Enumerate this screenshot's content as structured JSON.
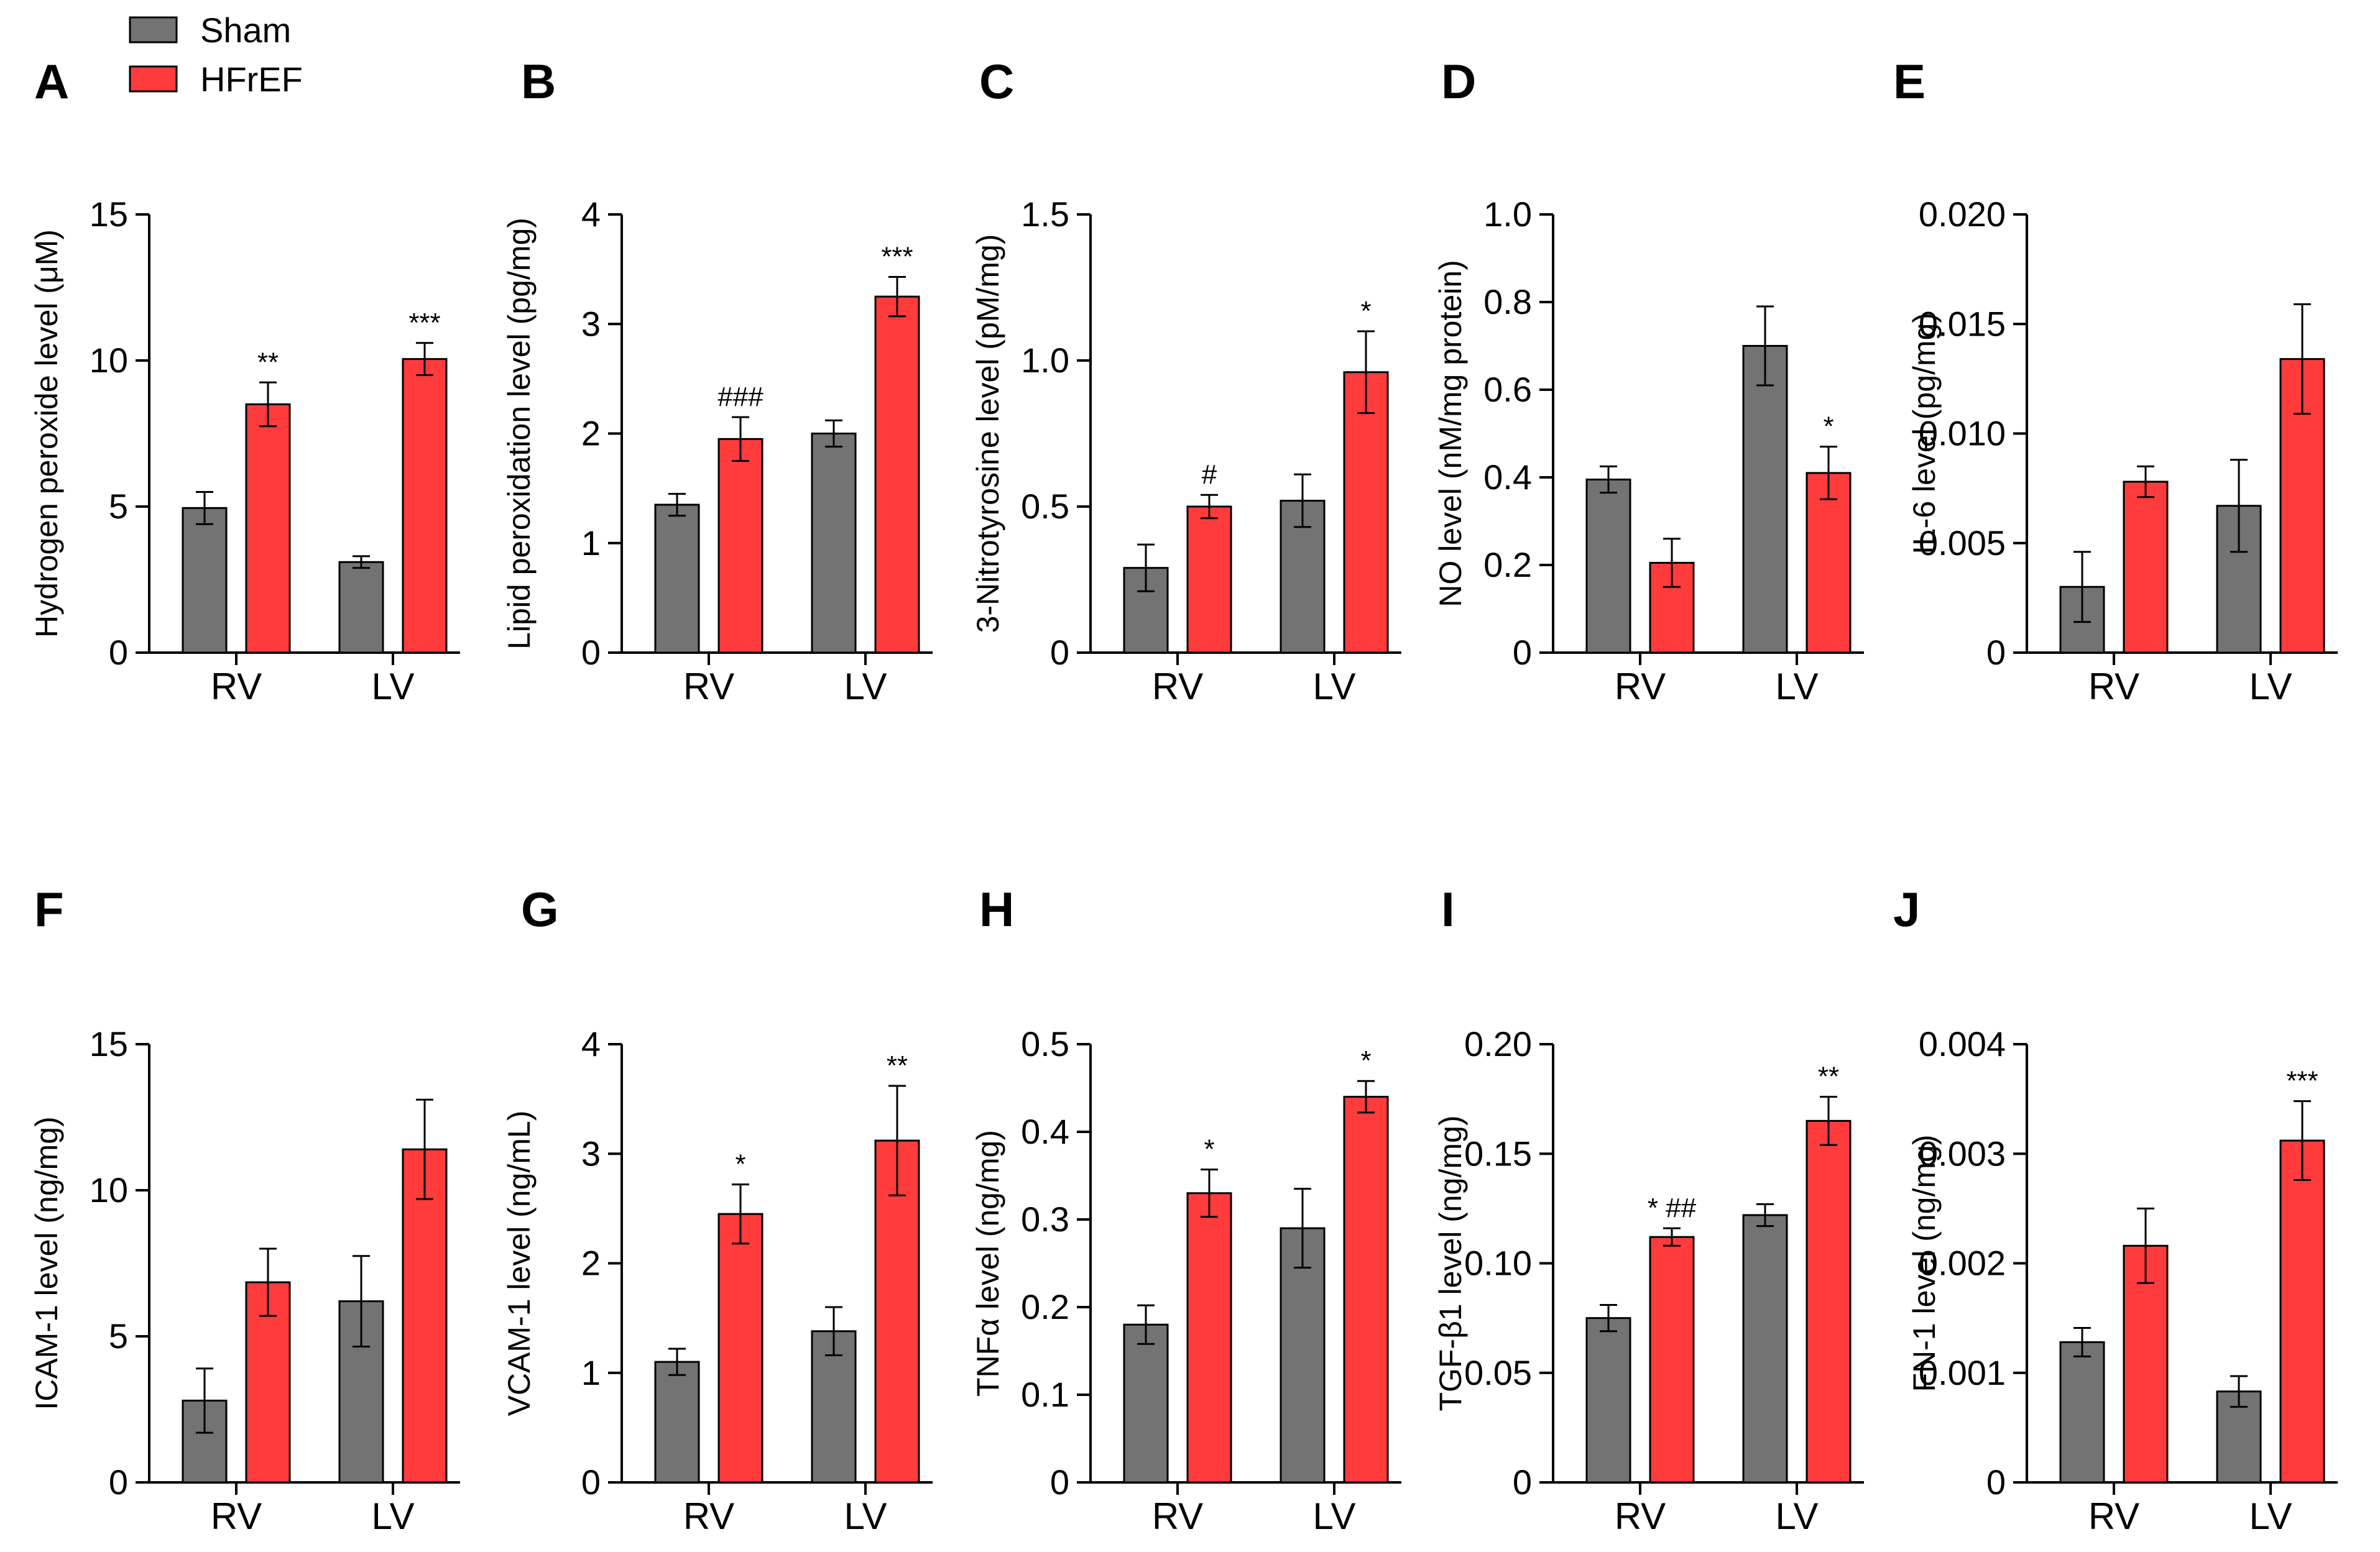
{
  "legend": {
    "items": [
      {
        "label": "Sham",
        "color": "#737373"
      },
      {
        "label": "HFrEF",
        "color": "#FF3B3B"
      }
    ]
  },
  "chart_data": [
    {
      "panel": "A",
      "type": "bar",
      "ylabel": "Hydrogen peroxide level (μM)",
      "categories": [
        "RV",
        "LV"
      ],
      "ylim": [
        0,
        15
      ],
      "yticks": [
        "0",
        "5",
        "10",
        "15"
      ],
      "series": [
        {
          "name": "Sham",
          "values": [
            4.95,
            3.1
          ],
          "errors": [
            0.55,
            0.2
          ]
        },
        {
          "name": "HFrEF",
          "values": [
            8.5,
            10.05
          ],
          "errors": [
            0.75,
            0.55
          ]
        }
      ],
      "annotations": [
        "**",
        "***"
      ]
    },
    {
      "panel": "B",
      "type": "bar",
      "ylabel": "Lipid peroxidation level (pg/mg)",
      "categories": [
        "RV",
        "LV"
      ],
      "ylim": [
        0,
        4
      ],
      "yticks": [
        "0",
        "1",
        "2",
        "3",
        "4"
      ],
      "series": [
        {
          "name": "Sham",
          "values": [
            1.35,
            2.0
          ],
          "errors": [
            0.1,
            0.12
          ]
        },
        {
          "name": "HFrEF",
          "values": [
            1.95,
            3.25
          ],
          "errors": [
            0.2,
            0.18
          ]
        }
      ],
      "annotations": [
        "###",
        "***"
      ]
    },
    {
      "panel": "C",
      "type": "bar",
      "ylabel": "3-Nitrotyrosine level (pM/mg)",
      "categories": [
        "RV",
        "LV"
      ],
      "ylim": [
        0,
        1.5
      ],
      "yticks": [
        "0",
        "0.5",
        "1.0",
        "1.5"
      ],
      "series": [
        {
          "name": "Sham",
          "values": [
            0.29,
            0.52
          ],
          "errors": [
            0.08,
            0.09
          ]
        },
        {
          "name": "HFrEF",
          "values": [
            0.5,
            0.96
          ],
          "errors": [
            0.04,
            0.14
          ]
        }
      ],
      "annotations": [
        "#",
        "*"
      ]
    },
    {
      "panel": "D",
      "type": "bar",
      "ylabel": "NO level (nM/mg protein)",
      "categories": [
        "RV",
        "LV"
      ],
      "ylim": [
        0,
        1.0
      ],
      "yticks": [
        "0",
        "0.2",
        "0.4",
        "0.6",
        "0.8",
        "1.0"
      ],
      "series": [
        {
          "name": "Sham",
          "values": [
            0.395,
            0.7
          ],
          "errors": [
            0.03,
            0.09
          ]
        },
        {
          "name": "HFrEF",
          "values": [
            0.205,
            0.41
          ],
          "errors": [
            0.055,
            0.06
          ]
        }
      ],
      "annotations": [
        "",
        "*"
      ]
    },
    {
      "panel": "E",
      "type": "bar",
      "ylabel": "IL-6 level (pg/mg)",
      "categories": [
        "RV",
        "LV"
      ],
      "ylim": [
        0,
        0.02
      ],
      "yticks": [
        "0",
        "0.005",
        "0.010",
        "0.015",
        "0.020"
      ],
      "series": [
        {
          "name": "Sham",
          "values": [
            0.003,
            0.0067
          ],
          "errors": [
            0.0016,
            0.0021
          ]
        },
        {
          "name": "HFrEF",
          "values": [
            0.0078,
            0.0134
          ],
          "errors": [
            0.0007,
            0.0025
          ]
        }
      ],
      "annotations": [
        "",
        ""
      ]
    },
    {
      "panel": "F",
      "type": "bar",
      "ylabel": "ICAM-1 level (ng/mg)",
      "categories": [
        "RV",
        "LV"
      ],
      "ylim": [
        0,
        15
      ],
      "yticks": [
        "0",
        "5",
        "10",
        "15"
      ],
      "series": [
        {
          "name": "Sham",
          "values": [
            2.8,
            6.2
          ],
          "errors": [
            1.1,
            1.55
          ]
        },
        {
          "name": "HFrEF",
          "values": [
            6.85,
            11.4
          ],
          "errors": [
            1.15,
            1.7
          ]
        }
      ],
      "annotations": [
        "",
        ""
      ]
    },
    {
      "panel": "G",
      "type": "bar",
      "ylabel": "VCAM-1 level (ng/mL)",
      "categories": [
        "RV",
        "LV"
      ],
      "ylim": [
        0,
        4
      ],
      "yticks": [
        "0",
        "1",
        "2",
        "3",
        "4"
      ],
      "series": [
        {
          "name": "Sham",
          "values": [
            1.1,
            1.38
          ],
          "errors": [
            0.12,
            0.22
          ]
        },
        {
          "name": "HFrEF",
          "values": [
            2.45,
            3.12
          ],
          "errors": [
            0.27,
            0.5
          ]
        }
      ],
      "annotations": [
        "*",
        "**"
      ]
    },
    {
      "panel": "H",
      "type": "bar",
      "ylabel": "TNFα level (ng/mg)",
      "categories": [
        "RV",
        "LV"
      ],
      "ylim": [
        0,
        0.5
      ],
      "yticks": [
        "0",
        "0.1",
        "0.2",
        "0.3",
        "0.4",
        "0.5"
      ],
      "series": [
        {
          "name": "Sham",
          "values": [
            0.18,
            0.29
          ],
          "errors": [
            0.022,
            0.045
          ]
        },
        {
          "name": "HFrEF",
          "values": [
            0.33,
            0.44
          ],
          "errors": [
            0.027,
            0.018
          ]
        }
      ],
      "annotations": [
        "*",
        "*"
      ]
    },
    {
      "panel": "I",
      "type": "bar",
      "ylabel": "TGF-β1 level (ng/mg)",
      "categories": [
        "RV",
        "LV"
      ],
      "ylim": [
        0,
        0.2
      ],
      "yticks": [
        "0",
        "0.05",
        "0.10",
        "0.15",
        "0.20"
      ],
      "series": [
        {
          "name": "Sham",
          "values": [
            0.075,
            0.122
          ],
          "errors": [
            0.006,
            0.005
          ]
        },
        {
          "name": "HFrEF",
          "values": [
            0.112,
            0.165
          ],
          "errors": [
            0.004,
            0.011
          ]
        }
      ],
      "annotations": [
        "* ##",
        "**"
      ]
    },
    {
      "panel": "J",
      "type": "bar",
      "ylabel": "FN-1 level (ng/mg)",
      "categories": [
        "RV",
        "LV"
      ],
      "ylim": [
        0,
        0.004
      ],
      "yticks": [
        "0",
        "0.001",
        "0.002",
        "0.003",
        "0.004"
      ],
      "series": [
        {
          "name": "Sham",
          "values": [
            0.00128,
            0.00083
          ],
          "errors": [
            0.00013,
            0.00014
          ]
        },
        {
          "name": "HFrEF",
          "values": [
            0.00216,
            0.00312
          ],
          "errors": [
            0.00034,
            0.00036
          ]
        }
      ],
      "annotations": [
        "",
        "***"
      ]
    }
  ]
}
